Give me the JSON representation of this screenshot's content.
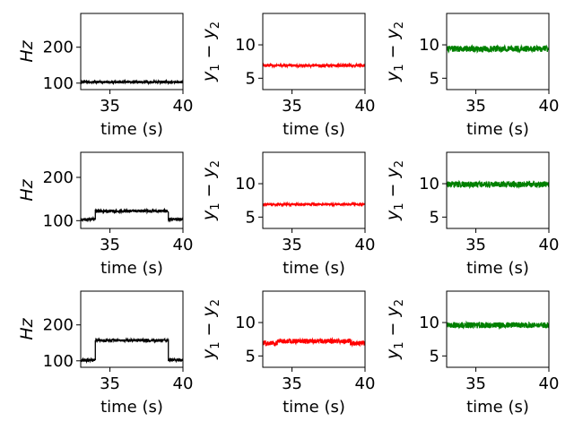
{
  "chart_data": [
    {
      "type": "line",
      "row": 0,
      "col": 0,
      "xlabel": "time (s)",
      "ylabel": "Hz",
      "xlim": [
        33,
        40
      ],
      "ylim": [
        82,
        294
      ],
      "xticks": [
        35,
        40
      ],
      "yticks": [
        100,
        200
      ],
      "color": "#000000",
      "noise_amplitude": 3.5,
      "series": [
        {
          "segments": [
            {
              "x": [
                33,
                40
              ],
              "y": [
                103,
                103
              ]
            }
          ]
        }
      ]
    },
    {
      "type": "line",
      "row": 0,
      "col": 1,
      "xlabel": "time (s)",
      "ylabel": "y1 - y2",
      "xlim": [
        33,
        40
      ],
      "ylim": [
        3.3,
        14.7
      ],
      "xticks": [
        35,
        40
      ],
      "yticks": [
        5,
        10
      ],
      "color": "#ff0000",
      "noise_amplitude": 0.2,
      "series": [
        {
          "segments": [
            {
              "x": [
                33,
                40
              ],
              "y": [
                6.9,
                6.9
              ]
            }
          ]
        }
      ]
    },
    {
      "type": "line",
      "row": 0,
      "col": 2,
      "xlabel": "time (s)",
      "ylabel": "y1 - y2",
      "xlim": [
        33,
        40
      ],
      "ylim": [
        3.3,
        14.7
      ],
      "xticks": [
        35,
        40
      ],
      "yticks": [
        5,
        10
      ],
      "color": "#008000",
      "noise_amplitude": 0.45,
      "series": [
        {
          "segments": [
            {
              "x": [
                33,
                40
              ],
              "y": [
                9.4,
                9.4
              ]
            }
          ]
        }
      ]
    },
    {
      "type": "line",
      "row": 1,
      "col": 0,
      "xlabel": "time (s)",
      "ylabel": "Hz",
      "xlim": [
        33,
        40
      ],
      "ylim": [
        82,
        258
      ],
      "xticks": [
        35,
        40
      ],
      "yticks": [
        100,
        200
      ],
      "color": "#000000",
      "noise_amplitude": 3.5,
      "series": [
        {
          "segments": [
            {
              "x": [
                33,
                34
              ],
              "y": [
                103,
                103
              ]
            },
            {
              "x": [
                34,
                39
              ],
              "y": [
                122,
                122
              ]
            },
            {
              "x": [
                39,
                40
              ],
              "y": [
                103,
                103
              ]
            }
          ]
        }
      ]
    },
    {
      "type": "line",
      "row": 1,
      "col": 1,
      "xlabel": "time (s)",
      "ylabel": "y1 - y2",
      "xlim": [
        33,
        40
      ],
      "ylim": [
        3.3,
        14.7
      ],
      "xticks": [
        35,
        40
      ],
      "yticks": [
        5,
        10
      ],
      "color": "#ff0000",
      "noise_amplitude": 0.15,
      "series": [
        {
          "segments": [
            {
              "x": [
                33,
                40
              ],
              "y": [
                6.9,
                6.9
              ]
            }
          ]
        }
      ]
    },
    {
      "type": "line",
      "row": 1,
      "col": 2,
      "xlabel": "time (s)",
      "ylabel": "y1 - y2",
      "xlim": [
        33,
        40
      ],
      "ylim": [
        3.3,
        14.7
      ],
      "xticks": [
        35,
        40
      ],
      "yticks": [
        5,
        10
      ],
      "color": "#008000",
      "noise_amplitude": 0.45,
      "series": [
        {
          "segments": [
            {
              "x": [
                33,
                40
              ],
              "y": [
                9.9,
                9.9
              ]
            }
          ]
        }
      ]
    },
    {
      "type": "line",
      "row": 2,
      "col": 0,
      "xlabel": "time (s)",
      "ylabel": "Hz",
      "xlim": [
        33,
        40
      ],
      "ylim": [
        82,
        294
      ],
      "xticks": [
        35,
        40
      ],
      "yticks": [
        100,
        200
      ],
      "color": "#000000",
      "noise_amplitude": 4,
      "series": [
        {
          "segments": [
            {
              "x": [
                33,
                34
              ],
              "y": [
                102,
                102
              ]
            },
            {
              "x": [
                34,
                39
              ],
              "y": [
                157,
                157
              ]
            },
            {
              "x": [
                39,
                40
              ],
              "y": [
                102,
                102
              ]
            }
          ]
        }
      ]
    },
    {
      "type": "line",
      "row": 2,
      "col": 1,
      "xlabel": "time (s)",
      "ylabel": "y1 - y2",
      "xlim": [
        33,
        40
      ],
      "ylim": [
        3.3,
        14.7
      ],
      "xticks": [
        35,
        40
      ],
      "yticks": [
        5,
        10
      ],
      "color": "#ff0000",
      "noise_amplitude": 0.35,
      "series": [
        {
          "segments": [
            {
              "x": [
                33,
                34
              ],
              "y": [
                6.9,
                6.9
              ]
            },
            {
              "x": [
                34,
                39
              ],
              "y": [
                7.2,
                7.2
              ]
            },
            {
              "x": [
                39,
                40
              ],
              "y": [
                6.9,
                6.9
              ]
            }
          ]
        }
      ]
    },
    {
      "type": "line",
      "row": 2,
      "col": 2,
      "xlabel": "time (s)",
      "ylabel": "y1 - y2",
      "xlim": [
        33,
        40
      ],
      "ylim": [
        3.3,
        14.7
      ],
      "xticks": [
        35,
        40
      ],
      "yticks": [
        5,
        10
      ],
      "color": "#008000",
      "noise_amplitude": 0.45,
      "series": [
        {
          "segments": [
            {
              "x": [
                33,
                40
              ],
              "y": [
                9.6,
                9.6
              ]
            }
          ]
        }
      ]
    }
  ]
}
